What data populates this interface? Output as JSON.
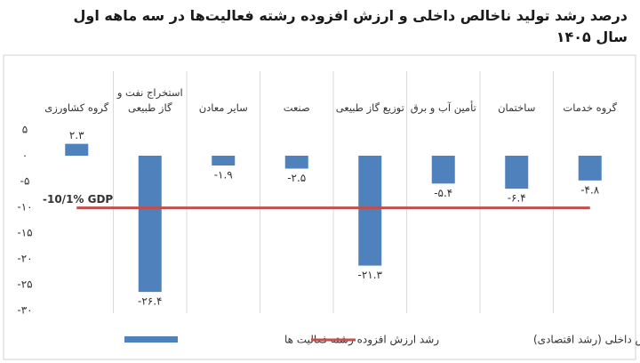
{
  "chart_data": {
    "type": "bar",
    "title": "درصد رشد تولید ناخالص داخلی و ارزش افزوده رشته فعالیت‌ها در سه ماهه اول سال ۱۴۰۵",
    "categories": [
      "گروه کشاورزی",
      "استخراج نفت و گاز طبیعی",
      "سایر معادن",
      "صنعت",
      "توزیع گاز طبیعی",
      "تأمین آب و برق",
      "ساختمان",
      "گروه خدمات"
    ],
    "series": [
      {
        "name": "رشد ارزش افزوده رشته فعالیت ها",
        "type": "bar",
        "color": "#4f81bd",
        "values": [
          2.3,
          -26.4,
          -1.9,
          -2.5,
          -21.3,
          -5.4,
          -6.4,
          -4.8
        ],
        "value_labels": [
          "۲.۳",
          "-۲۶.۴",
          "-۱.۹",
          "-۲.۵",
          "-۲۱.۳",
          "-۵.۴",
          "-۶.۴",
          "-۴.۸"
        ]
      },
      {
        "name": "رشد محصول ناخالص داخلی (رشد اقتصادی)",
        "type": "line",
        "color": "#c0504d",
        "values": [
          -10.1,
          -10.1,
          -10.1,
          -10.1,
          -10.1,
          -10.1,
          -10.1,
          -10.1
        ]
      }
    ],
    "annotation": "-10/1%   GDP",
    "ylim": [
      -30,
      5
    ],
    "yticks": [
      {
        "value": 5,
        "label": "۵"
      },
      {
        "value": 0,
        "label": "۰"
      },
      {
        "value": -5,
        "label": "-۵"
      },
      {
        "value": -10,
        "label": "-۱۰"
      },
      {
        "value": -15,
        "label": "-۱۵"
      },
      {
        "value": -20,
        "label": "-۲۰"
      },
      {
        "value": -25,
        "label": "-۲۵"
      },
      {
        "value": -30,
        "label": "-۳۰"
      }
    ]
  }
}
